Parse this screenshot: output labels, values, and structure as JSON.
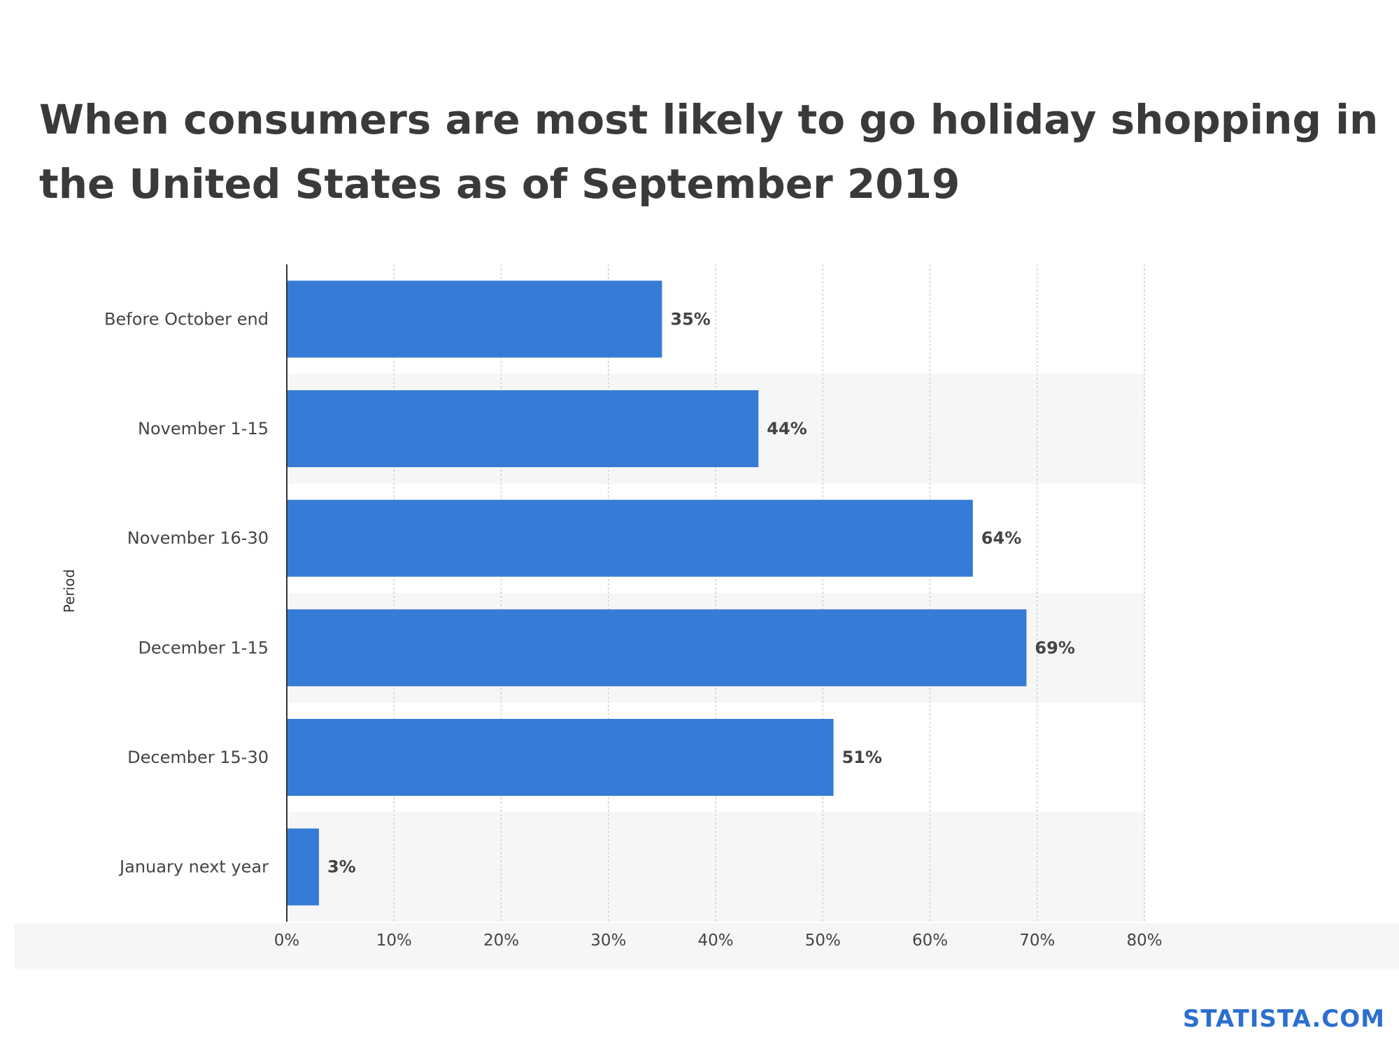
{
  "brand": "STATISTA.COM",
  "colors": {
    "bar": "#367cd6",
    "band": "#f6f6f6",
    "grid": "#d0d0d0",
    "axis": "#333333",
    "brand": "#2b6fcf"
  },
  "chart_data": {
    "type": "bar",
    "orientation": "horizontal",
    "title": "When consumers are most likely to go holiday shopping in the United States as of September 2019",
    "ylabel": "Period",
    "xlabel": "",
    "categories": [
      "Before October end",
      "November 1-15",
      "November 16-30",
      "December 1-15",
      "December 15-30",
      "January next year"
    ],
    "values": [
      35,
      44,
      64,
      69,
      51,
      3
    ],
    "value_labels": [
      "35%",
      "44%",
      "64%",
      "69%",
      "51%",
      "3%"
    ],
    "xlim": [
      0,
      80
    ],
    "ticks": [
      0,
      10,
      20,
      30,
      40,
      50,
      60,
      70,
      80
    ],
    "tick_labels": [
      "0%",
      "10%",
      "20%",
      "30%",
      "40%",
      "50%",
      "60%",
      "70%",
      "80%"
    ],
    "grid": true,
    "legend": false
  }
}
